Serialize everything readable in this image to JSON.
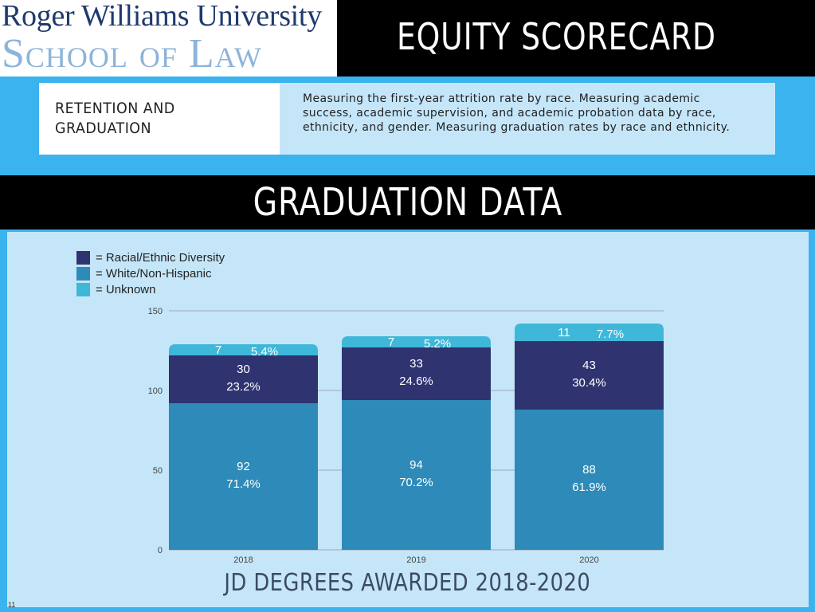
{
  "logo": {
    "line1": "Roger Williams University",
    "line2": "School of Law"
  },
  "header": {
    "title": "EQUITY SCORECARD"
  },
  "retention": {
    "label": "RETENTION AND GRADUATION",
    "description": "Measuring the first-year attrition rate by race. Measuring academic success, academic supervision, and academic probation data by race, ethnicity, and gender. Measuring graduation rates by race and ethnicity."
  },
  "section": {
    "title": "GRADUATION DATA"
  },
  "legend": [
    {
      "label": "= Racial/Ethnic Diversity",
      "color": "#2f3370"
    },
    {
      "label": "= White/Non-Hispanic",
      "color": "#2e8ab8"
    },
    {
      "label": "= Unknown",
      "color": "#3fb7d8"
    }
  ],
  "chart_data": {
    "type": "bar",
    "stacked": true,
    "categories": [
      "2018",
      "2019",
      "2020"
    ],
    "series": [
      {
        "name": "White/Non-Hispanic",
        "values": [
          92,
          94,
          88
        ],
        "pct_labels": [
          "71.4%",
          "70.2%",
          "61.9%"
        ],
        "color": "#2e8ab8"
      },
      {
        "name": "Racial/Ethnic Diversity",
        "values": [
          30,
          33,
          43
        ],
        "pct_labels": [
          "23.2%",
          "24.6%",
          "30.4%"
        ],
        "color": "#2f3370"
      },
      {
        "name": "Unknown",
        "values": [
          7,
          7,
          11
        ],
        "pct_labels": [
          "5.4%",
          "5.2%",
          "7.7%"
        ],
        "color": "#3fb7d8"
      }
    ],
    "yticks": [
      0,
      50,
      100,
      150
    ],
    "ylim": [
      0,
      150
    ],
    "grid": true,
    "title": "JD DEGREES AWARDED 2018-2020"
  },
  "page_number": "11"
}
